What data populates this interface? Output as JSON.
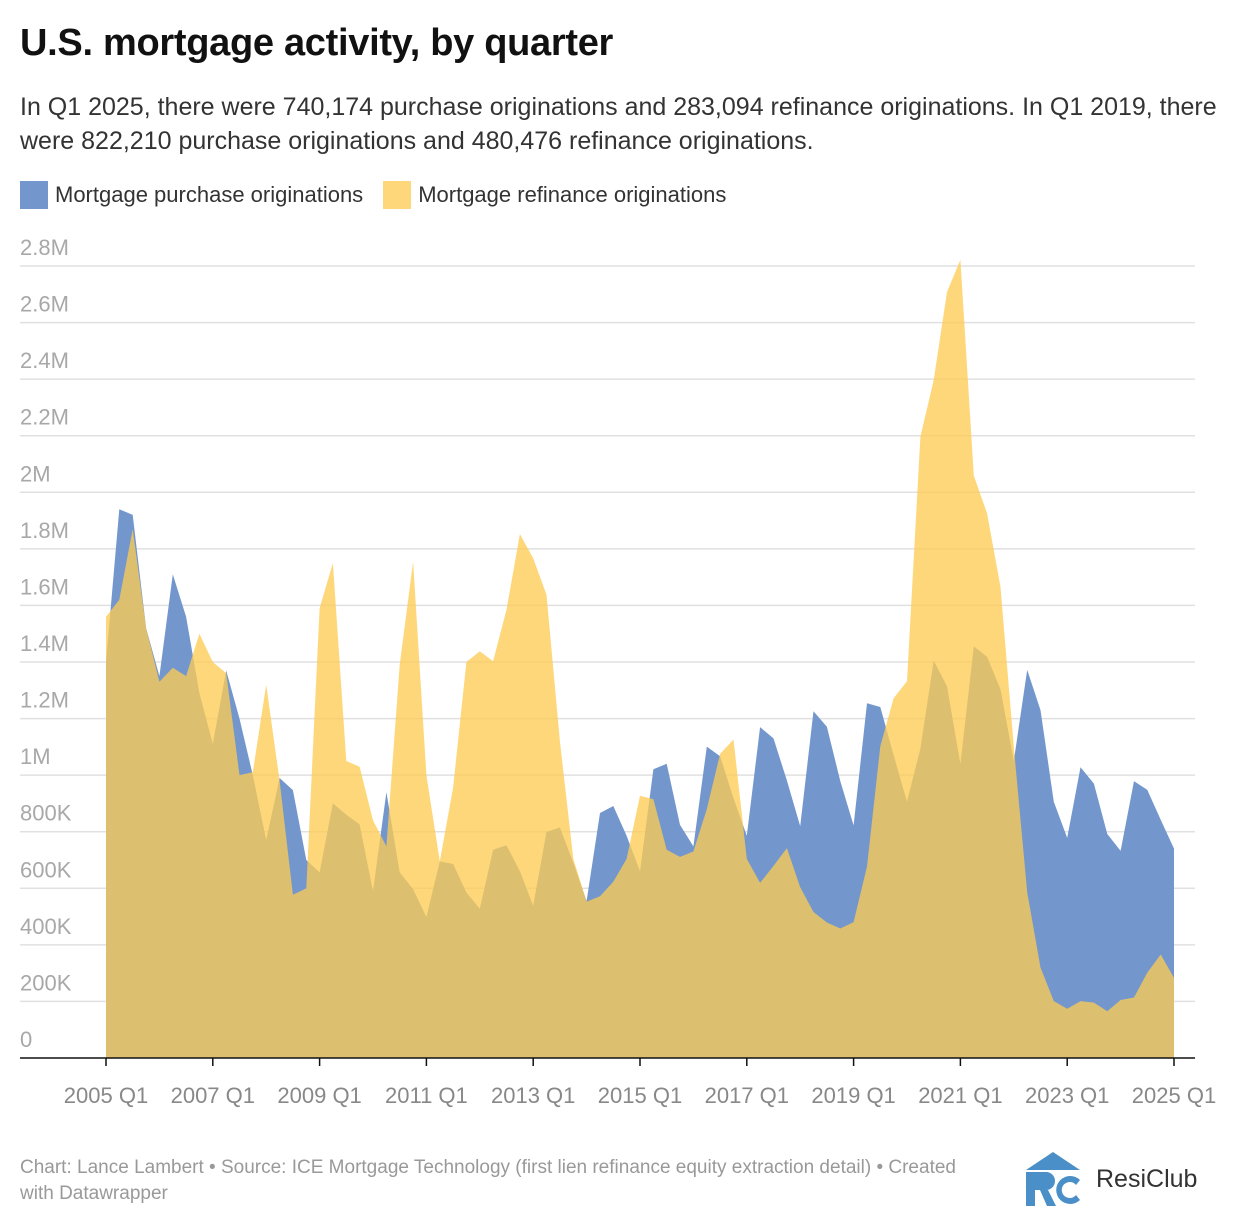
{
  "title": "U.S. mortgage activity, by quarter",
  "subtitle": "In Q1 2025, there were 740,174 purchase originations and 283,094 refinance originations. In Q1 2019, there were 822,210 purchase originations and 480,476 refinance originations.",
  "footer": "Chart: Lance Lambert • Source: ICE Mortgage Technology (first lien refinance equity extraction detail) • Created with Datawrapper",
  "logo_text": "ResiClub",
  "colors": {
    "purchase": "#7397cd",
    "refinance": "#fccb52",
    "refinance_legend": "#fdd77a",
    "grid": "#e0e0e0",
    "axis": "#111111",
    "tick_label": "#a8a8a8",
    "logo": "#4a8fc7"
  },
  "chart_data": {
    "type": "area",
    "title": "U.S. mortgage activity, by quarter",
    "xlabel": "",
    "ylabel": "",
    "ylim": [
      0,
      2800000
    ],
    "grid": true,
    "legend_position": "top-left",
    "y_ticks": [
      {
        "value": 0,
        "label": "0"
      },
      {
        "value": 200000,
        "label": "200K"
      },
      {
        "value": 400000,
        "label": "400K"
      },
      {
        "value": 600000,
        "label": "600K"
      },
      {
        "value": 800000,
        "label": "800K"
      },
      {
        "value": 1000000,
        "label": "1M"
      },
      {
        "value": 1200000,
        "label": "1.2M"
      },
      {
        "value": 1400000,
        "label": "1.4M"
      },
      {
        "value": 1600000,
        "label": "1.6M"
      },
      {
        "value": 1800000,
        "label": "1.8M"
      },
      {
        "value": 2000000,
        "label": "2M"
      },
      {
        "value": 2200000,
        "label": "2.2M"
      },
      {
        "value": 2400000,
        "label": "2.4M"
      },
      {
        "value": 2600000,
        "label": "2.6M"
      },
      {
        "value": 2800000,
        "label": "2.8M"
      }
    ],
    "x_ticks": [
      "2005 Q1",
      "2007 Q1",
      "2009 Q1",
      "2011 Q1",
      "2013 Q1",
      "2015 Q1",
      "2017 Q1",
      "2019 Q1",
      "2021 Q1",
      "2023 Q1",
      "2025 Q1"
    ],
    "x": [
      "2005 Q1",
      "2005 Q2",
      "2005 Q3",
      "2005 Q4",
      "2006 Q1",
      "2006 Q2",
      "2006 Q3",
      "2006 Q4",
      "2007 Q1",
      "2007 Q2",
      "2007 Q3",
      "2007 Q4",
      "2008 Q1",
      "2008 Q2",
      "2008 Q3",
      "2008 Q4",
      "2009 Q1",
      "2009 Q2",
      "2009 Q3",
      "2009 Q4",
      "2010 Q1",
      "2010 Q2",
      "2010 Q3",
      "2010 Q4",
      "2011 Q1",
      "2011 Q2",
      "2011 Q3",
      "2011 Q4",
      "2012 Q1",
      "2012 Q2",
      "2012 Q3",
      "2012 Q4",
      "2013 Q1",
      "2013 Q2",
      "2013 Q3",
      "2013 Q4",
      "2014 Q1",
      "2014 Q2",
      "2014 Q3",
      "2014 Q4",
      "2015 Q1",
      "2015 Q2",
      "2015 Q3",
      "2015 Q4",
      "2016 Q1",
      "2016 Q2",
      "2016 Q3",
      "2016 Q4",
      "2017 Q1",
      "2017 Q2",
      "2017 Q3",
      "2017 Q4",
      "2018 Q1",
      "2018 Q2",
      "2018 Q3",
      "2018 Q4",
      "2019 Q1",
      "2019 Q2",
      "2019 Q3",
      "2019 Q4",
      "2020 Q1",
      "2020 Q2",
      "2020 Q3",
      "2020 Q4",
      "2021 Q1",
      "2021 Q2",
      "2021 Q3",
      "2021 Q4",
      "2022 Q1",
      "2022 Q2",
      "2022 Q3",
      "2022 Q4",
      "2023 Q1",
      "2023 Q2",
      "2023 Q3",
      "2023 Q4",
      "2024 Q1",
      "2024 Q2",
      "2024 Q3",
      "2024 Q4",
      "2025 Q1"
    ],
    "series": [
      {
        "name": "Mortgage purchase originations",
        "key": "purchase",
        "values": [
          1400000,
          1940000,
          1920000,
          1520000,
          1350000,
          1710000,
          1560000,
          1290000,
          1110000,
          1370000,
          1200000,
          1000000,
          770000,
          990000,
          947000,
          700000,
          656000,
          900000,
          860000,
          826000,
          590000,
          940000,
          656000,
          597000,
          498000,
          695000,
          686000,
          585000,
          528000,
          736000,
          752000,
          660000,
          538000,
          799000,
          815000,
          690000,
          555000,
          866000,
          891000,
          786000,
          660000,
          1021000,
          1040000,
          824000,
          748000,
          1101000,
          1067000,
          918000,
          786000,
          1170000,
          1130000,
          981000,
          820000,
          1226000,
          1171000,
          979000,
          822210,
          1254000,
          1241000,
          1071000,
          906000,
          1094000,
          1405000,
          1314000,
          1039000,
          1455000,
          1418000,
          1303000,
          1050000,
          1372000,
          1230000,
          906000,
          778000,
          1028000,
          970000,
          792000,
          732000,
          979000,
          948000,
          842000,
          740174
        ]
      },
      {
        "name": "Mortgage refinance originations",
        "key": "refinance",
        "values": [
          1560000,
          1620000,
          1870000,
          1520000,
          1330000,
          1380000,
          1350000,
          1500000,
          1400000,
          1360000,
          1000000,
          1010000,
          1320000,
          980000,
          577000,
          600000,
          1590000,
          1750000,
          1050000,
          1030000,
          840000,
          748000,
          1390000,
          1755000,
          1000000,
          695000,
          956000,
          1400000,
          1438000,
          1403000,
          1585000,
          1852000,
          1767000,
          1638000,
          1120000,
          704000,
          553000,
          572000,
          623000,
          704000,
          927000,
          915000,
          736000,
          711000,
          730000,
          880000,
          1075000,
          1126000,
          704000,
          619000,
          679000,
          742000,
          604000,
          516000,
          479000,
          458000,
          480476,
          677000,
          1102000,
          1272000,
          1332000,
          2196000,
          2397000,
          2708000,
          2822000,
          2059000,
          1925000,
          1665000,
          1100000,
          586000,
          320000,
          201000,
          174000,
          201000,
          196000,
          165000,
          205000,
          214000,
          302000,
          366000,
          283094
        ]
      }
    ]
  }
}
